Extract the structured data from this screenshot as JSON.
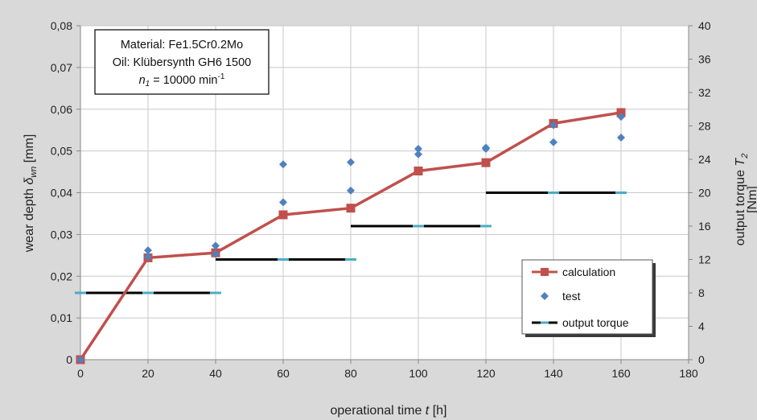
{
  "chart_data": {
    "type": "line",
    "xlabel": "operational time",
    "xlabel_symbol": "t",
    "xlabel_unit": "[h]",
    "ylabel": "wear depth",
    "ylabel_symbol": "δ",
    "ylabel_subscript": "wn",
    "ylabel_unit": "[mm]",
    "y2label": "output torque",
    "y2label_symbol": "T",
    "y2label_subscript": "2",
    "y2label_unit": "[Nm]",
    "xlim": [
      0,
      180
    ],
    "ylim": [
      0,
      0.08
    ],
    "y2lim": [
      0,
      40
    ],
    "x_ticks": [
      0,
      20,
      40,
      60,
      80,
      100,
      120,
      140,
      160,
      180
    ],
    "y_ticks": [
      "0",
      "0,01",
      "0,02",
      "0,03",
      "0,04",
      "0,05",
      "0,06",
      "0,07",
      "0,08"
    ],
    "y_tick_values": [
      0,
      0.01,
      0.02,
      0.03,
      0.04,
      0.05,
      0.06,
      0.07,
      0.08
    ],
    "y2_ticks": [
      0,
      4,
      8,
      12,
      16,
      20,
      24,
      28,
      32,
      36,
      40
    ],
    "grid": true,
    "legend_position": "bottom-right",
    "info_box": {
      "line1": "Material: Fe1.5Cr0.2Mo",
      "line2": "Oil: Klübersynth GH6 1500",
      "line3_symbol": "n",
      "line3_subscript": "1",
      "line3_value": " = 10000 min",
      "line3_superscript": "-1"
    },
    "series": [
      {
        "name": "calculation",
        "kind": "line-marker",
        "color": "#c0504d",
        "x": [
          0,
          20,
          40,
          60,
          80,
          100,
          120,
          140,
          160
        ],
        "y": [
          0,
          0.0244,
          0.0256,
          0.0347,
          0.0363,
          0.0452,
          0.0472,
          0.0566,
          0.0592
        ]
      },
      {
        "name": "test",
        "kind": "scatter",
        "color": "#4f81bd",
        "x": [
          0,
          20,
          20,
          40,
          40,
          60,
          60,
          80,
          80,
          100,
          100,
          120,
          120,
          140,
          140,
          160,
          160
        ],
        "y": [
          0,
          0.0262,
          0.0247,
          0.0273,
          0.0253,
          0.0468,
          0.0377,
          0.0473,
          0.0405,
          0.0505,
          0.0492,
          0.0508,
          0.0505,
          0.0521,
          0.0562,
          0.0582,
          0.0532
        ]
      },
      {
        "name": "output torque",
        "kind": "step",
        "axis": "right",
        "color": "#000000",
        "marker_color": "#4bacc6",
        "segments": [
          {
            "x0": 0,
            "x1": 40,
            "value": 8
          },
          {
            "x0": 40,
            "x1": 80,
            "value": 12
          },
          {
            "x0": 80,
            "x1": 120,
            "value": 16
          },
          {
            "x0": 120,
            "x1": 160,
            "value": 20
          }
        ],
        "marker_x": [
          0,
          20,
          40,
          60,
          80,
          100,
          120,
          140,
          160
        ]
      }
    ]
  }
}
